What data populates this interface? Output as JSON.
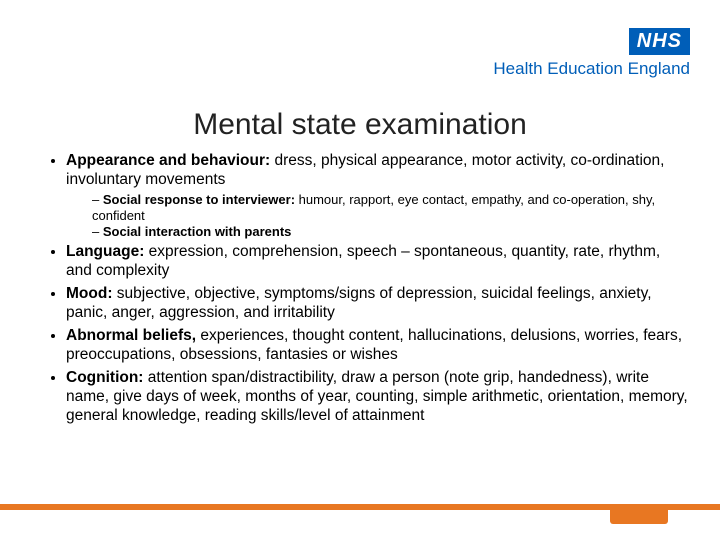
{
  "logo": {
    "nhs": "NHS",
    "subtitle": "Health Education England"
  },
  "title": "Mental state examination",
  "bullets": [
    {
      "lead": "Appearance and behaviour:",
      "rest": "  dress, physical appearance, motor activity, co-ordination, involuntary movements",
      "subs": [
        {
          "lead": "Social response to interviewer:",
          "rest": " humour, rapport, eye contact, empathy, and co-operation, shy, confident"
        },
        {
          "lead": "Social interaction with parents",
          "rest": ""
        }
      ]
    },
    {
      "lead": "Language:",
      "rest": "  expression, comprehension, speech – spontaneous, quantity, rate, rhythm, and complexity"
    },
    {
      "lead": "Mood:",
      "rest": "  subjective, objective, symptoms/signs of depression, suicidal feelings, anxiety, panic, anger, aggression, and irritability"
    },
    {
      "lead": "Abnormal beliefs,",
      "rest": " experiences, thought content, hallucinations, delusions, worries, fears, preoccupations, obsessions, fantasies or wishes"
    },
    {
      "lead": "Cognition:",
      "rest": " attention span/distractibility, draw a person (note grip, handedness), write name, give days of week, months of year, counting, simple arithmetic, orientation, memory, general knowledge, reading skills/level of attainment"
    }
  ],
  "colors": {
    "nhs_blue": "#005eb8",
    "accent_orange": "#e87722",
    "text": "#000000",
    "background": "#ffffff"
  }
}
